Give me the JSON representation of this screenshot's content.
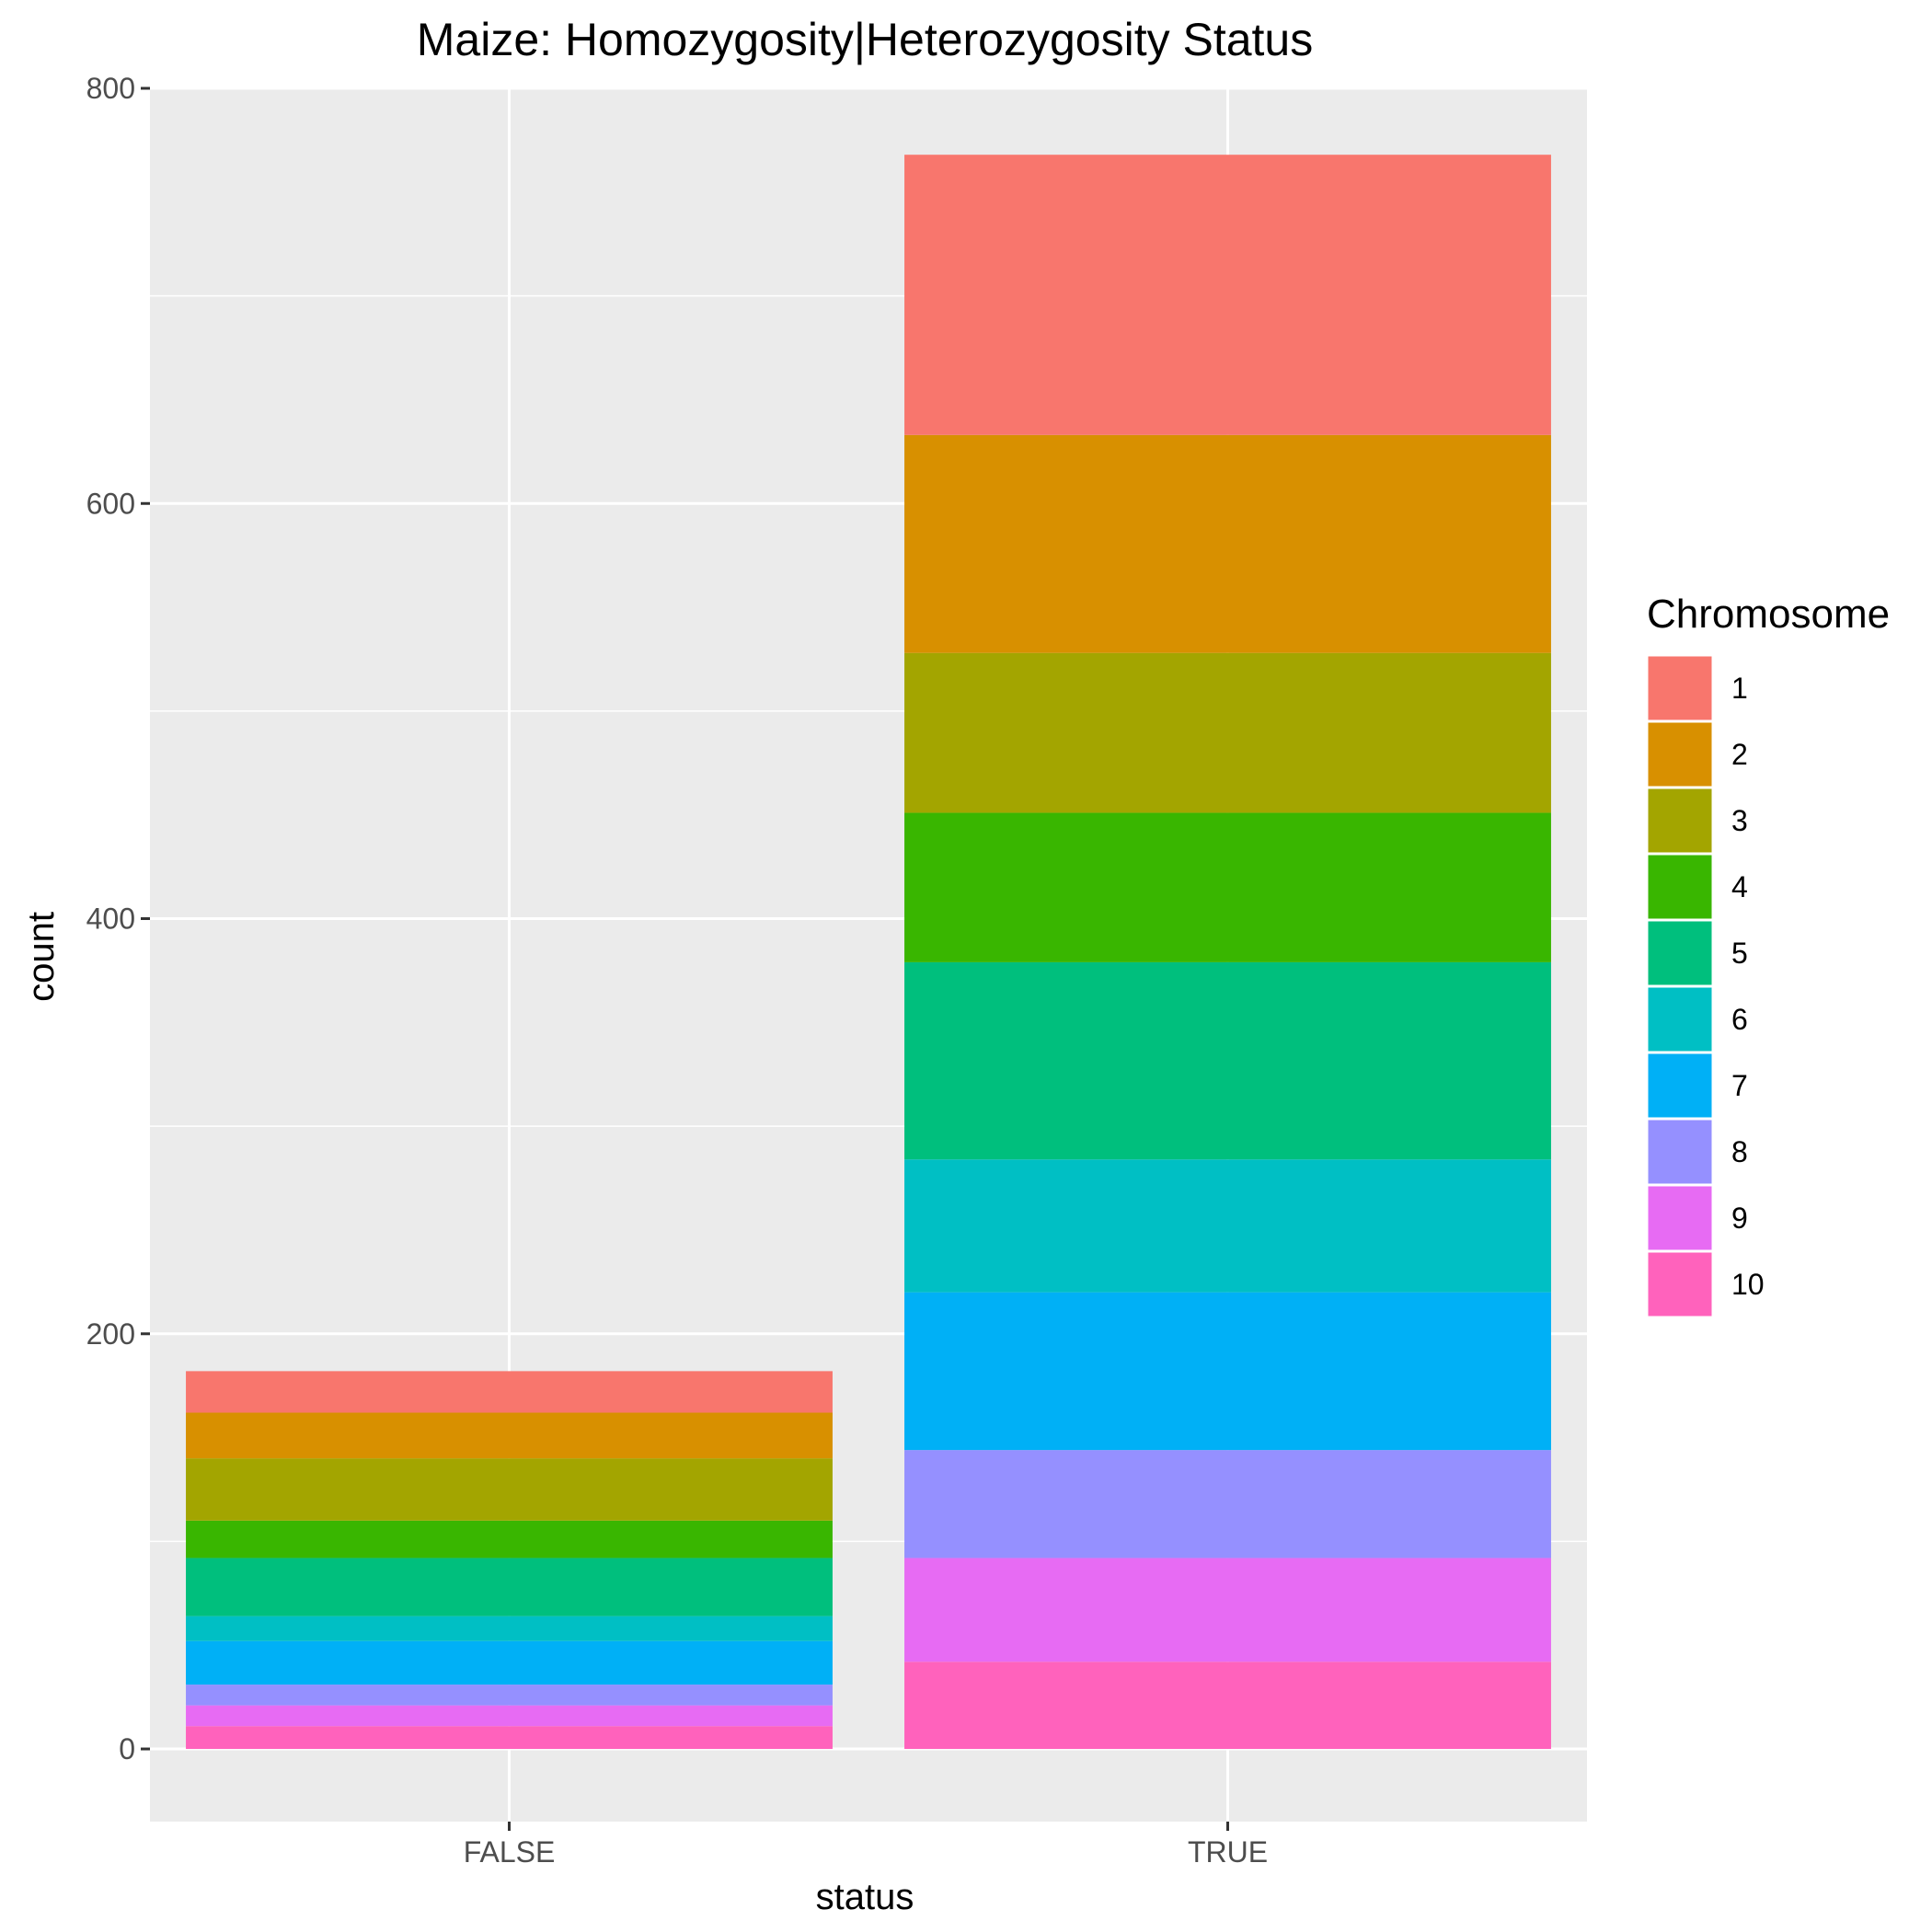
{
  "chart_data": {
    "type": "bar",
    "stacked": true,
    "title": "Maize: Homozygosity|Heterozygosity Status",
    "xlabel": "status",
    "ylabel": "count",
    "categories": [
      "FALSE",
      "TRUE"
    ],
    "ylim": [
      -35,
      800
    ],
    "yticks": [
      0,
      200,
      400,
      600,
      800
    ],
    "grid": true,
    "legend": {
      "title": "Chromosome",
      "position": "right"
    },
    "series": [
      {
        "name": "1",
        "color": "#F8766D",
        "values": [
          20,
          135
        ]
      },
      {
        "name": "2",
        "color": "#D89000",
        "values": [
          22,
          105
        ]
      },
      {
        "name": "3",
        "color": "#A3A500",
        "values": [
          30,
          77
        ]
      },
      {
        "name": "4",
        "color": "#39B600",
        "values": [
          18,
          72
        ]
      },
      {
        "name": "5",
        "color": "#00BF7D",
        "values": [
          28,
          95
        ]
      },
      {
        "name": "6",
        "color": "#00BFC4",
        "values": [
          12,
          64
        ]
      },
      {
        "name": "7",
        "color": "#00B0F6",
        "values": [
          21,
          76
        ]
      },
      {
        "name": "8",
        "color": "#9590FF",
        "values": [
          10,
          52
        ]
      },
      {
        "name": "9",
        "color": "#E76BF3",
        "values": [
          10,
          50
        ]
      },
      {
        "name": "10",
        "color": "#FF62BC",
        "values": [
          11,
          42
        ]
      }
    ]
  }
}
